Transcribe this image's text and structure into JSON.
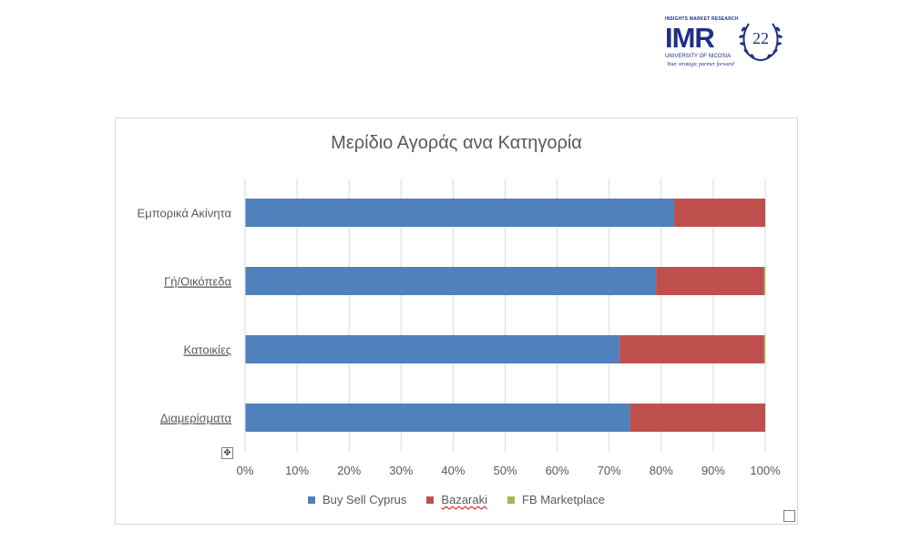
{
  "logo": {
    "top_text": "INSIGHTS MARKET RESEARCH",
    "brand": "IMR",
    "university": "UNIVERSITY OF NICOSIA",
    "tagline": "Your strategic partner forward",
    "seal_number": "22"
  },
  "chart_data": {
    "type": "bar",
    "orientation": "horizontal",
    "stacked": "percent",
    "title": "Μερίδιο Αγοράς ανα Κατηγορία",
    "categories": [
      "Εμπορικά Ακίνητα",
      "Γή/Οικόπεδα",
      "Κατοικίες",
      "Διαμερίσματα"
    ],
    "series": [
      {
        "name": "Buy Sell Cyprus",
        "color": "#4f81bd",
        "values": [
          82.5,
          79,
          72,
          74
        ]
      },
      {
        "name": "Bazaraki",
        "color": "#c0504d",
        "values": [
          17.5,
          20.8,
          27.8,
          26
        ]
      },
      {
        "name": "FB Marketplace",
        "color": "#9bbb59",
        "values": [
          0,
          0.2,
          0.2,
          0
        ]
      }
    ],
    "x_ticks": [
      "0%",
      "10%",
      "20%",
      "30%",
      "40%",
      "50%",
      "60%",
      "70%",
      "80%",
      "90%",
      "100%"
    ],
    "xlim": [
      0,
      100
    ],
    "grid": true,
    "legend": "bottom"
  }
}
